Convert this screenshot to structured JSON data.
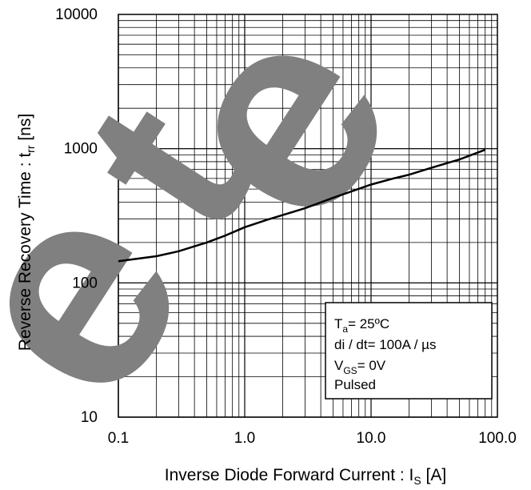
{
  "chart_data": {
    "type": "line",
    "title": "",
    "xlabel": {
      "main": "Inverse Diode Forward Current : I",
      "sub": "S",
      "unit": " [A]"
    },
    "ylabel": {
      "main": "Reverse Recovery Time : t",
      "sub": "rr",
      "unit": " [ns]"
    },
    "x_scale": "log",
    "y_scale": "log",
    "xlim": [
      0.1,
      100
    ],
    "ylim": [
      10,
      10000
    ],
    "x_ticks": [
      {
        "value": 0.1,
        "label": "0.1"
      },
      {
        "value": 1,
        "label": "1.0"
      },
      {
        "value": 10,
        "label": "10.0"
      },
      {
        "value": 100,
        "label": "100.0"
      }
    ],
    "y_ticks": [
      {
        "value": 10,
        "label": "10"
      },
      {
        "value": 100,
        "label": "100"
      },
      {
        "value": 1000,
        "label": "1000"
      },
      {
        "value": 10000,
        "label": "10000"
      }
    ],
    "grid": true,
    "series": [
      {
        "x": [
          0.1,
          0.2,
          0.3,
          0.5,
          0.7,
          1.0,
          1.5,
          2,
          3,
          5,
          7,
          10,
          15,
          20,
          30,
          50,
          80
        ],
        "y": [
          145,
          158,
          172,
          200,
          225,
          260,
          295,
          320,
          360,
          430,
          480,
          540,
          600,
          640,
          720,
          830,
          980
        ]
      }
    ],
    "annotation": {
      "lines": [
        {
          "main": "T",
          "sub": "a",
          "rest": "= 25ºC"
        },
        {
          "main": "di / dt= 100A / µs",
          "sub": "",
          "rest": ""
        },
        {
          "main": "V",
          "sub": "GS",
          "rest": "= 0V"
        },
        {
          "main": "Pulsed",
          "sub": "",
          "rest": ""
        }
      ]
    },
    "watermark": {
      "text": "ete",
      "color": "#808080"
    }
  }
}
